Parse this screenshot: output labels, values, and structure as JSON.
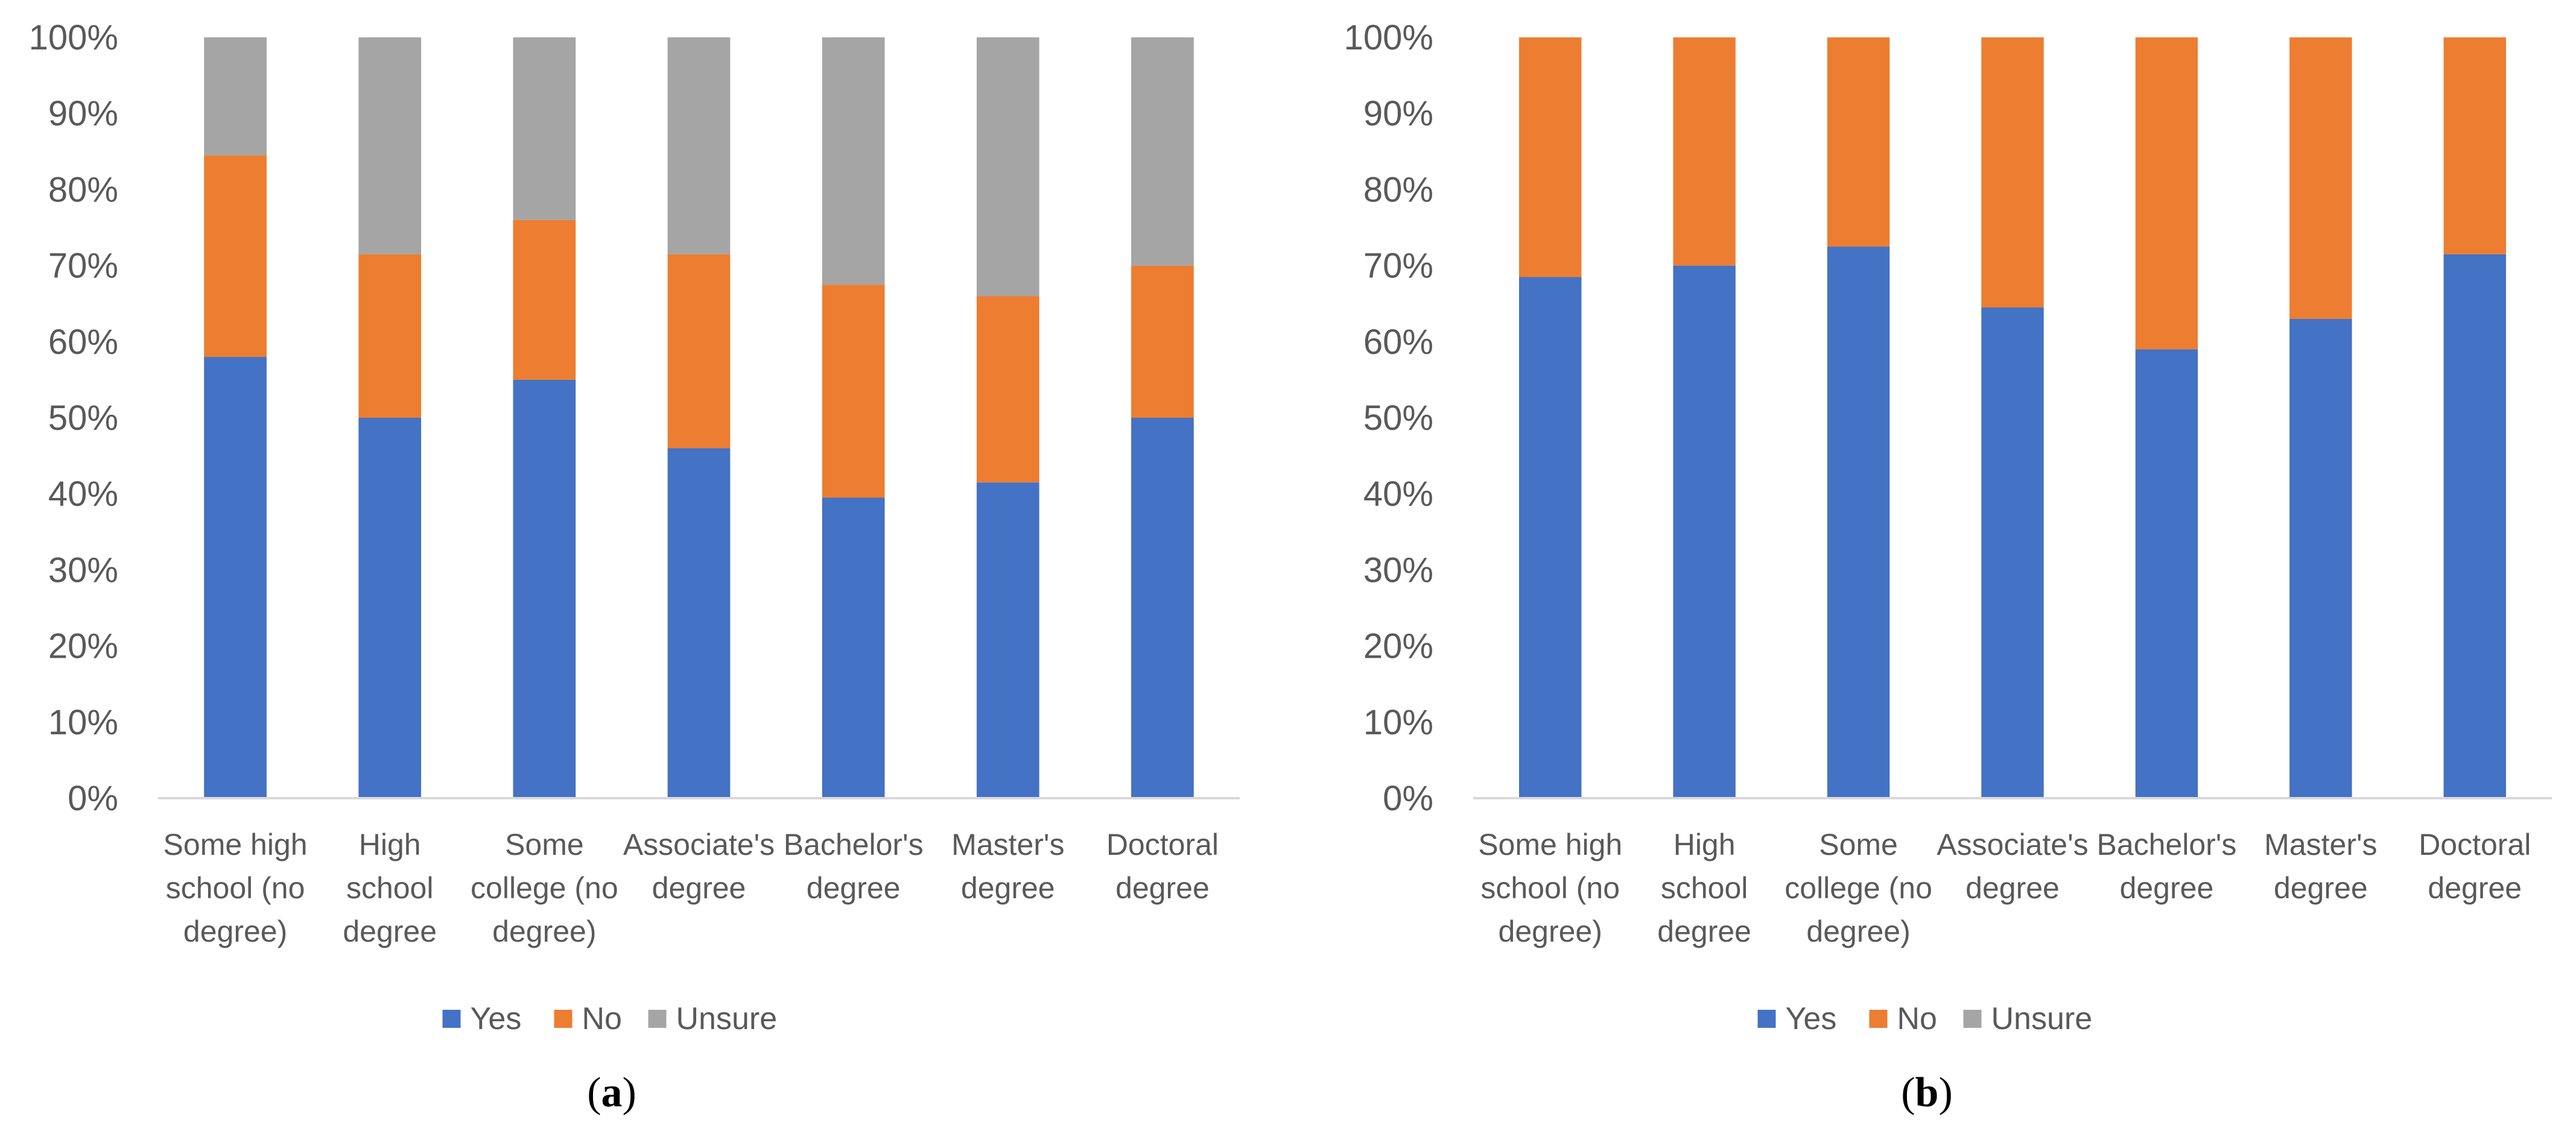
{
  "chart_data": [
    {
      "id": "a",
      "type": "bar",
      "stacked": true,
      "caption": "a",
      "categories": [
        [
          "Some high",
          "school (no",
          "degree)"
        ],
        [
          "High",
          "school",
          "degree"
        ],
        [
          "Some",
          "college (no",
          "degree)"
        ],
        [
          "Associate's",
          "degree"
        ],
        [
          "Bachelor's",
          "degree"
        ],
        [
          "Master's",
          "degree"
        ],
        [
          "Doctoral",
          "degree"
        ]
      ],
      "series": [
        {
          "name": "Yes",
          "color": "#4472C4",
          "values": [
            58,
            50,
            55,
            46,
            39.5,
            41.5,
            50
          ]
        },
        {
          "name": "No",
          "color": "#ED7D31",
          "values": [
            26.5,
            21.5,
            21,
            25.5,
            28,
            24.5,
            20
          ]
        },
        {
          "name": "Unsure",
          "color": "#A5A5A5",
          "values": [
            15.5,
            28.5,
            24,
            28.5,
            32.5,
            34,
            30
          ]
        }
      ],
      "ylim": [
        0,
        100
      ],
      "yticks": [
        "0%",
        "10%",
        "20%",
        "30%",
        "40%",
        "50%",
        "60%",
        "70%",
        "80%",
        "90%",
        "100%"
      ],
      "legend": [
        "Yes",
        "No",
        "Unsure"
      ],
      "legend_position": "bottom",
      "grid": false
    },
    {
      "id": "b",
      "type": "bar",
      "stacked": true,
      "caption": "b",
      "categories": [
        [
          "Some high",
          "school (no",
          "degree)"
        ],
        [
          "High",
          "school",
          "degree"
        ],
        [
          "Some",
          "college (no",
          "degree)"
        ],
        [
          "Associate's",
          "degree"
        ],
        [
          "Bachelor's",
          "degree"
        ],
        [
          "Master's",
          "degree"
        ],
        [
          "Doctoral",
          "degree"
        ]
      ],
      "series": [
        {
          "name": "Yes",
          "color": "#4472C4",
          "values": [
            68.5,
            70,
            72.5,
            64.5,
            59,
            63,
            71.5
          ]
        },
        {
          "name": "No",
          "color": "#ED7D31",
          "values": [
            31.5,
            30,
            27.5,
            35.5,
            41,
            37,
            28.5
          ]
        },
        {
          "name": "Unsure",
          "color": "#A5A5A5",
          "values": [
            0,
            0,
            0,
            0,
            0,
            0,
            0
          ]
        }
      ],
      "ylim": [
        0,
        100
      ],
      "yticks": [
        "0%",
        "10%",
        "20%",
        "30%",
        "40%",
        "50%",
        "60%",
        "70%",
        "80%",
        "90%",
        "100%"
      ],
      "legend": [
        "Yes",
        "No",
        "Unsure"
      ],
      "legend_position": "bottom",
      "grid": false
    }
  ]
}
